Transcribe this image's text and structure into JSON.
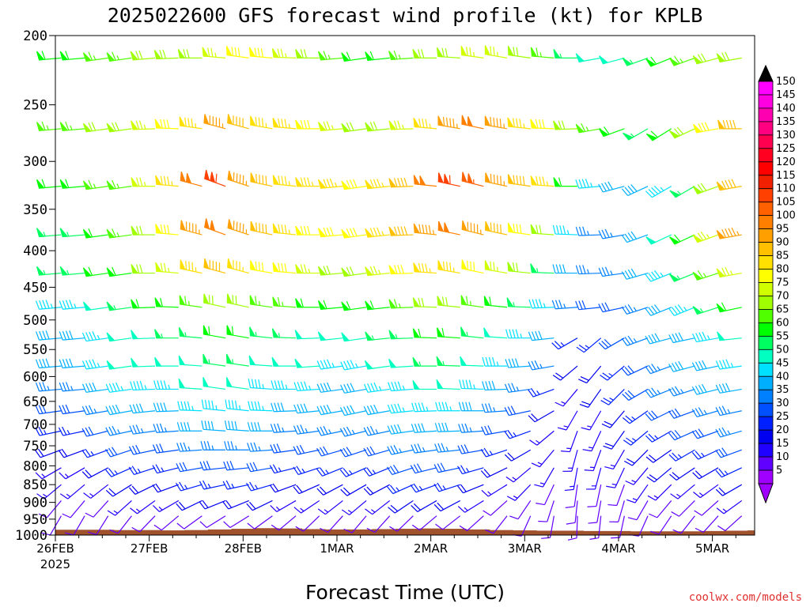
{
  "chart_data": {
    "type": "wind-barb-time-height",
    "title": "2025022600 GFS forecast wind profile (kt) for KPLB",
    "xlabel": "Forecast Time (UTC)",
    "credit": "coolwx.com/models",
    "x_ticks": [
      "26FEB",
      "27FEB",
      "28FEB",
      "1MAR",
      "2MAR",
      "3MAR",
      "4MAR",
      "5MAR"
    ],
    "x_year": "2025",
    "y_ticks": [
      "200",
      "250",
      "300",
      "350",
      "400",
      "450",
      "500",
      "550",
      "600",
      "650",
      "700",
      "750",
      "800",
      "850",
      "900",
      "950",
      "1000"
    ],
    "ylim": [
      1000,
      200
    ],
    "y_scale": "log-pressure",
    "time_step_hours": 6,
    "levels": [
      {
        "p": 215,
        "speed": [
          60,
          60,
          65,
          65,
          68,
          70,
          72,
          75,
          78,
          80,
          75,
          70,
          65,
          60,
          62,
          65,
          70,
          72,
          75,
          75,
          70,
          65,
          55,
          50,
          50,
          55,
          60,
          65,
          70,
          68,
          65,
          65
        ],
        "dir": [
          265,
          265,
          262,
          262,
          265,
          268,
          270,
          275,
          278,
          275,
          272,
          270,
          265,
          262,
          264,
          266,
          270,
          274,
          278,
          280,
          278,
          275,
          270,
          260,
          255,
          250,
          248,
          250,
          255,
          260,
          265,
          268
        ]
      },
      {
        "p": 270,
        "speed": [
          65,
          65,
          70,
          70,
          75,
          80,
          85,
          95,
          90,
          85,
          85,
          80,
          75,
          70,
          72,
          75,
          85,
          95,
          100,
          95,
          85,
          80,
          70,
          65,
          60,
          55,
          60,
          70,
          80,
          90,
          100,
          105
        ],
        "dir": [
          265,
          265,
          262,
          262,
          268,
          272,
          278,
          285,
          285,
          280,
          275,
          270,
          265,
          262,
          264,
          268,
          275,
          280,
          282,
          280,
          276,
          272,
          268,
          260,
          250,
          240,
          238,
          245,
          260,
          270,
          275,
          280
        ]
      },
      {
        "p": 325,
        "speed": [
          60,
          60,
          65,
          65,
          75,
          85,
          100,
          110,
          95,
          90,
          85,
          85,
          85,
          80,
          85,
          90,
          100,
          110,
          105,
          95,
          90,
          85,
          60,
          45,
          40,
          40,
          45,
          55,
          70,
          90,
          95,
          100
        ],
        "dir": [
          265,
          265,
          262,
          262,
          270,
          275,
          285,
          290,
          288,
          282,
          276,
          270,
          265,
          262,
          264,
          268,
          276,
          282,
          284,
          282,
          278,
          274,
          270,
          265,
          255,
          245,
          240,
          240,
          250,
          260,
          270,
          275
        ]
      },
      {
        "p": 380,
        "speed": [
          55,
          55,
          60,
          65,
          70,
          80,
          95,
          100,
          95,
          90,
          85,
          80,
          80,
          80,
          85,
          90,
          95,
          100,
          95,
          90,
          80,
          70,
          45,
          35,
          35,
          40,
          50,
          60,
          75,
          95,
          100,
          95
        ],
        "dir": [
          265,
          265,
          262,
          262,
          270,
          275,
          285,
          290,
          288,
          282,
          276,
          270,
          265,
          262,
          264,
          268,
          276,
          282,
          284,
          282,
          278,
          274,
          272,
          268,
          260,
          250,
          245,
          245,
          250,
          260,
          270,
          275
        ]
      },
      {
        "p": 430,
        "speed": [
          55,
          55,
          60,
          60,
          70,
          75,
          85,
          90,
          85,
          80,
          80,
          75,
          70,
          70,
          75,
          80,
          85,
          85,
          80,
          75,
          70,
          55,
          40,
          35,
          35,
          40,
          45,
          55,
          65,
          75,
          80,
          85
        ],
        "dir": [
          265,
          265,
          262,
          262,
          270,
          275,
          282,
          285,
          285,
          280,
          275,
          270,
          265,
          262,
          264,
          268,
          274,
          280,
          282,
          280,
          276,
          272,
          270,
          268,
          262,
          254,
          248,
          248,
          252,
          260,
          268,
          272
        ]
      },
      {
        "p": 480,
        "speed": [
          45,
          45,
          50,
          55,
          60,
          60,
          65,
          70,
          70,
          65,
          65,
          60,
          60,
          60,
          62,
          65,
          70,
          70,
          65,
          60,
          55,
          45,
          35,
          30,
          30,
          35,
          40,
          45,
          55,
          60,
          65,
          70
        ],
        "dir": [
          265,
          265,
          262,
          262,
          268,
          272,
          278,
          282,
          282,
          278,
          274,
          270,
          265,
          262,
          264,
          268,
          272,
          276,
          278,
          276,
          272,
          268,
          266,
          264,
          258,
          252,
          248,
          248,
          252,
          258,
          264,
          268
        ]
      },
      {
        "p": 530,
        "speed": [
          40,
          40,
          45,
          50,
          50,
          55,
          55,
          60,
          60,
          55,
          55,
          50,
          50,
          50,
          55,
          55,
          60,
          60,
          55,
          50,
          45,
          40,
          25,
          25,
          30,
          35,
          40,
          40,
          45,
          50,
          55,
          55
        ],
        "dir": [
          265,
          265,
          262,
          262,
          268,
          270,
          275,
          280,
          280,
          276,
          272,
          268,
          264,
          262,
          264,
          268,
          272,
          274,
          276,
          274,
          270,
          264,
          240,
          230,
          240,
          250,
          255,
          258,
          260,
          264,
          268,
          270
        ]
      },
      {
        "p": 580,
        "speed": [
          40,
          40,
          45,
          50,
          50,
          50,
          50,
          55,
          55,
          50,
          50,
          50,
          45,
          45,
          50,
          50,
          55,
          55,
          50,
          45,
          40,
          35,
          20,
          20,
          25,
          30,
          35,
          40,
          40,
          45,
          50,
          50
        ],
        "dir": [
          265,
          265,
          262,
          262,
          268,
          270,
          274,
          278,
          278,
          274,
          270,
          266,
          262,
          260,
          262,
          266,
          270,
          272,
          272,
          270,
          266,
          260,
          230,
          220,
          230,
          245,
          250,
          255,
          258,
          262,
          266,
          268
        ]
      },
      {
        "p": 625,
        "speed": [
          35,
          35,
          40,
          45,
          45,
          45,
          50,
          50,
          50,
          45,
          45,
          45,
          40,
          40,
          45,
          45,
          50,
          50,
          45,
          40,
          35,
          25,
          15,
          18,
          25,
          30,
          35,
          35,
          40,
          40,
          45,
          45
        ],
        "dir": [
          265,
          265,
          262,
          262,
          268,
          270,
          274,
          278,
          278,
          274,
          270,
          266,
          262,
          260,
          262,
          266,
          270,
          272,
          272,
          268,
          262,
          250,
          220,
          215,
          225,
          240,
          248,
          252,
          256,
          260,
          264,
          266
        ]
      },
      {
        "p": 670,
        "speed": [
          30,
          30,
          35,
          40,
          40,
          40,
          45,
          45,
          45,
          45,
          40,
          40,
          40,
          40,
          40,
          45,
          45,
          45,
          40,
          35,
          30,
          20,
          15,
          15,
          20,
          25,
          30,
          30,
          35,
          35,
          40,
          40
        ],
        "dir": [
          262,
          262,
          260,
          260,
          264,
          268,
          272,
          276,
          276,
          272,
          268,
          264,
          260,
          258,
          260,
          264,
          268,
          270,
          270,
          266,
          258,
          240,
          210,
          210,
          220,
          235,
          244,
          250,
          254,
          258,
          262,
          264
        ]
      },
      {
        "p": 715,
        "speed": [
          25,
          25,
          30,
          35,
          35,
          35,
          40,
          40,
          40,
          40,
          35,
          35,
          35,
          35,
          35,
          40,
          40,
          40,
          35,
          30,
          25,
          15,
          15,
          15,
          20,
          25,
          25,
          30,
          30,
          35,
          35,
          35
        ],
        "dir": [
          258,
          258,
          256,
          258,
          262,
          266,
          270,
          274,
          274,
          270,
          266,
          262,
          258,
          256,
          258,
          262,
          266,
          268,
          266,
          260,
          250,
          230,
          200,
          205,
          215,
          230,
          240,
          246,
          250,
          254,
          258,
          260
        ]
      },
      {
        "p": 760,
        "speed": [
          20,
          20,
          25,
          30,
          30,
          30,
          35,
          35,
          35,
          35,
          30,
          30,
          30,
          30,
          30,
          35,
          35,
          35,
          30,
          25,
          20,
          15,
          15,
          15,
          15,
          20,
          20,
          25,
          25,
          30,
          30,
          30
        ],
        "dir": [
          250,
          250,
          250,
          252,
          258,
          262,
          266,
          270,
          270,
          266,
          262,
          258,
          254,
          252,
          254,
          258,
          262,
          264,
          260,
          252,
          240,
          220,
          195,
          200,
          210,
          225,
          235,
          240,
          245,
          250,
          254,
          256
        ]
      },
      {
        "p": 805,
        "speed": [
          15,
          15,
          20,
          25,
          25,
          25,
          30,
          30,
          30,
          30,
          25,
          25,
          25,
          25,
          25,
          30,
          30,
          30,
          25,
          20,
          15,
          15,
          15,
          15,
          15,
          15,
          20,
          20,
          20,
          25,
          25,
          25
        ],
        "dir": [
          240,
          240,
          242,
          246,
          252,
          256,
          260,
          264,
          264,
          260,
          256,
          252,
          248,
          246,
          248,
          252,
          256,
          258,
          254,
          244,
          230,
          210,
          190,
          195,
          205,
          220,
          230,
          236,
          240,
          245,
          250,
          252
        ]
      },
      {
        "p": 850,
        "speed": [
          15,
          15,
          15,
          20,
          20,
          20,
          25,
          25,
          25,
          25,
          20,
          20,
          20,
          20,
          20,
          25,
          25,
          25,
          20,
          15,
          15,
          10,
          12,
          12,
          12,
          15,
          15,
          15,
          15,
          20,
          20,
          20
        ],
        "dir": [
          230,
          230,
          232,
          238,
          244,
          250,
          254,
          258,
          258,
          254,
          250,
          246,
          242,
          240,
          242,
          246,
          250,
          252,
          248,
          238,
          224,
          205,
          188,
          192,
          200,
          215,
          225,
          230,
          234,
          240,
          245,
          248
        ]
      },
      {
        "p": 895,
        "speed": [
          10,
          10,
          12,
          15,
          15,
          15,
          20,
          20,
          20,
          20,
          15,
          15,
          15,
          15,
          15,
          20,
          20,
          20,
          15,
          12,
          10,
          10,
          10,
          10,
          10,
          12,
          12,
          12,
          12,
          15,
          15,
          15
        ],
        "dir": [
          220,
          220,
          222,
          228,
          234,
          240,
          244,
          248,
          248,
          244,
          240,
          236,
          232,
          230,
          232,
          236,
          240,
          242,
          238,
          228,
          214,
          198,
          186,
          190,
          196,
          210,
          220,
          225,
          228,
          234,
          238,
          240
        ]
      },
      {
        "p": 940,
        "speed": [
          8,
          8,
          8,
          10,
          10,
          10,
          12,
          12,
          12,
          12,
          10,
          10,
          10,
          10,
          10,
          12,
          12,
          12,
          10,
          8,
          8,
          8,
          8,
          8,
          8,
          8,
          8,
          10,
          10,
          10,
          10,
          10
        ],
        "dir": [
          210,
          210,
          212,
          218,
          224,
          230,
          234,
          238,
          238,
          234,
          230,
          226,
          222,
          220,
          222,
          226,
          230,
          232,
          228,
          218,
          204,
          190,
          182,
          186,
          192,
          204,
          214,
          218,
          222,
          228,
          232,
          234
        ]
      }
    ],
    "colorbar": {
      "labels": [
        "150",
        "145",
        "140",
        "135",
        "130",
        "125",
        "120",
        "115",
        "110",
        "105",
        "100",
        "95",
        "90",
        "85",
        "80",
        "75",
        "70",
        "65",
        "60",
        "55",
        "50",
        "45",
        "40",
        "35",
        "30",
        "25",
        "20",
        "15",
        "10",
        "5"
      ],
      "colors": [
        "#ff00ff",
        "#ff00e0",
        "#ff00b0",
        "#ff0080",
        "#ff0050",
        "#ff0020",
        "#ff0000",
        "#f02000",
        "#ff4000",
        "#ff6000",
        "#ff8000",
        "#ffa000",
        "#ffc000",
        "#ffe000",
        "#ffff00",
        "#d0ff00",
        "#a0ff00",
        "#50ff00",
        "#00ff00",
        "#00ff60",
        "#00ffc0",
        "#00e0ff",
        "#00b0ff",
        "#0080ff",
        "#0050ff",
        "#0020ff",
        "#0000f0",
        "#2000ff",
        "#6000ff",
        "#a000ff"
      ]
    },
    "terrain": {
      "color": "#a0522d",
      "surface_pressure": [
        983,
        983,
        983,
        984,
        984,
        985,
        984,
        982,
        980,
        978,
        979,
        981,
        982,
        982,
        981,
        980,
        979,
        980,
        982,
        984,
        985,
        986,
        986,
        987,
        987,
        988,
        988,
        988,
        987,
        986,
        985,
        984
      ]
    }
  }
}
